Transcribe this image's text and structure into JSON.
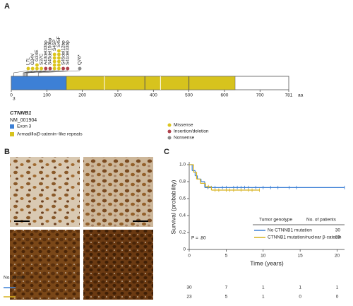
{
  "panel_labels": [
    "A",
    "B",
    "C"
  ],
  "chart_data": [
    {
      "type": "lollipop",
      "gene": "CTNNB1",
      "transcript": "NM_001904",
      "xlim": [
        0,
        781
      ],
      "xticks": [
        0,
        100,
        200,
        300,
        400,
        500,
        600,
        700,
        781
      ],
      "unit": "aa",
      "domains": [
        {
          "name": "Exon 3",
          "label": "3",
          "color": "#3d80d6",
          "start": 0,
          "end": 155
        },
        {
          "name": "Armadillo/β-catenin–like repeats",
          "color": "#d7c31d",
          "start": 155,
          "end": 630,
          "dividers": [
            262,
            376,
            420,
            500
          ]
        }
      ],
      "mutation_types": [
        {
          "name": "Missense",
          "color": "#dcc51f"
        },
        {
          "name": "Insertion/deletion",
          "color": "#b0434d"
        },
        {
          "name": "Nonsense",
          "color": "#8c8c8c"
        }
      ],
      "mutations": [
        {
          "label": "L7L",
          "position": 7,
          "type": "Missense",
          "count": 1
        },
        {
          "label": "G34V",
          "position": 34,
          "type": "Missense",
          "count": 1
        },
        {
          "label": "G34E",
          "position": 34,
          "type": "Missense",
          "count": 2
        },
        {
          "label": "S37C",
          "position": 37,
          "type": "Missense",
          "count": 1
        },
        {
          "label": "A43del33bp",
          "position": 43,
          "type": "Insertion/deletion",
          "count": 1
        },
        {
          "label": "S45del150bp",
          "position": 45,
          "type": "Insertion/deletion",
          "count": 1
        },
        {
          "label": "S45P",
          "position": 45,
          "type": "Missense",
          "count": 5
        },
        {
          "label": "S45F",
          "position": 45,
          "type": "Missense",
          "count": 6
        },
        {
          "label": "S45del12bp",
          "position": 45,
          "type": "Insertion/deletion",
          "count": 1
        },
        {
          "label": "S41del33bp",
          "position": 41,
          "type": "Insertion/deletion",
          "count": 1
        },
        {
          "label": "Q76*",
          "position": 76,
          "type": "Nonsense",
          "count": 1
        }
      ]
    },
    {
      "type": "survival",
      "xlabel": "Time (years)",
      "ylabel": "Survival (probability)",
      "xlim": [
        0,
        21
      ],
      "xticks": [
        0,
        5,
        10,
        15,
        20
      ],
      "ylim": [
        0,
        1
      ],
      "yticks": [
        0,
        0.2,
        0.4,
        0.6,
        0.8,
        {
          "value": 1,
          "label": "1.0"
        }
      ],
      "legend_title": "Tumor genotype",
      "legend_count_title": "No. of patients",
      "annotation": "P = .80",
      "at_risk_title": "No. at risk:",
      "at_risk_times": [
        0,
        5,
        10,
        15,
        20
      ],
      "series": [
        {
          "name": "No CTNNB1 mutation",
          "color": "#3d80d6",
          "patients": 30,
          "x": [
            0,
            0.4,
            0.8,
            1.1,
            1.6,
            2.1,
            21
          ],
          "y": [
            1,
            0.93,
            0.87,
            0.83,
            0.8,
            0.73,
            0.73
          ],
          "censored": [
            2.5,
            3,
            3.5,
            4.5,
            5,
            6,
            6.5,
            7,
            7.5,
            8,
            9,
            10,
            11,
            12,
            13.5,
            14.5,
            21
          ],
          "at_risk": [
            30,
            7,
            1,
            1,
            1
          ]
        },
        {
          "name": "CTNNB1 mutation/nuclear β-catenin",
          "color": "#d7b21d",
          "patients": 23,
          "x": [
            0,
            0.6,
            1,
            1.5,
            2.2,
            3,
            9.5
          ],
          "y": [
            1,
            0.91,
            0.83,
            0.78,
            0.74,
            0.7,
            0.7
          ],
          "censored": [
            2.6,
            3.5,
            4,
            5,
            5.5,
            6,
            7,
            8,
            8.5,
            9.5
          ],
          "at_risk": [
            23,
            5,
            1,
            0,
            0
          ]
        }
      ]
    }
  ]
}
